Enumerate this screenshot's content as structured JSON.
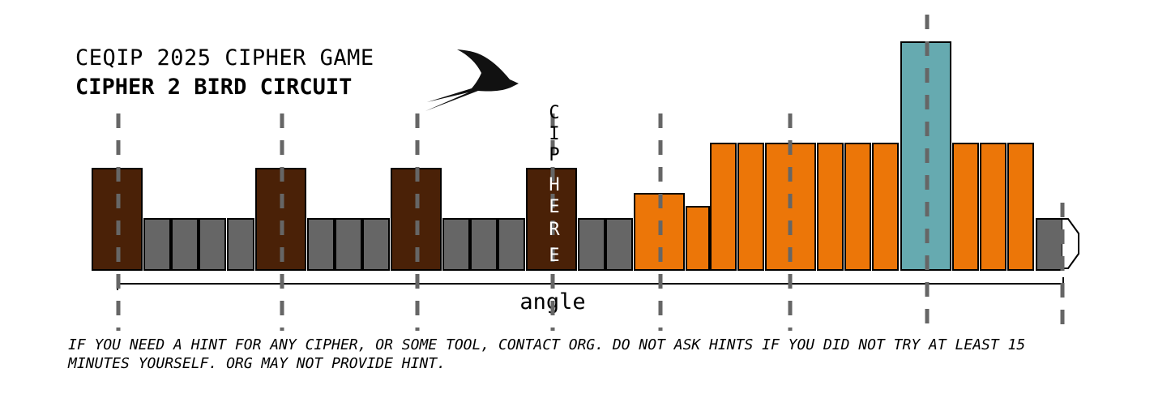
{
  "header": {
    "title": "CEQIP 2025 CIPHER GAME",
    "subtitle": "CIPHER 2 BIRD CIRCUIT"
  },
  "circuit": {
    "vertical_label": [
      "C",
      "I",
      "P",
      "H",
      "E",
      "R",
      "E"
    ],
    "axis_label": "angle",
    "block_colors": {
      "brown": "#4a2107",
      "gray": "#666666",
      "orange": "#ec7608",
      "teal": "#66aab0"
    },
    "dashed_line_color": "#666666",
    "icon": "swallow-bird-icon"
  },
  "footer": {
    "hint": "IF YOU NEED A HINT FOR ANY CIPHER, OR SOME TOOL, CONTACT ORG. DO NOT ASK HINTS IF YOU DID NOT TRY AT LEAST 15 MINUTES YOURSELF. ORG MAY NOT PROVIDE HINT."
  }
}
